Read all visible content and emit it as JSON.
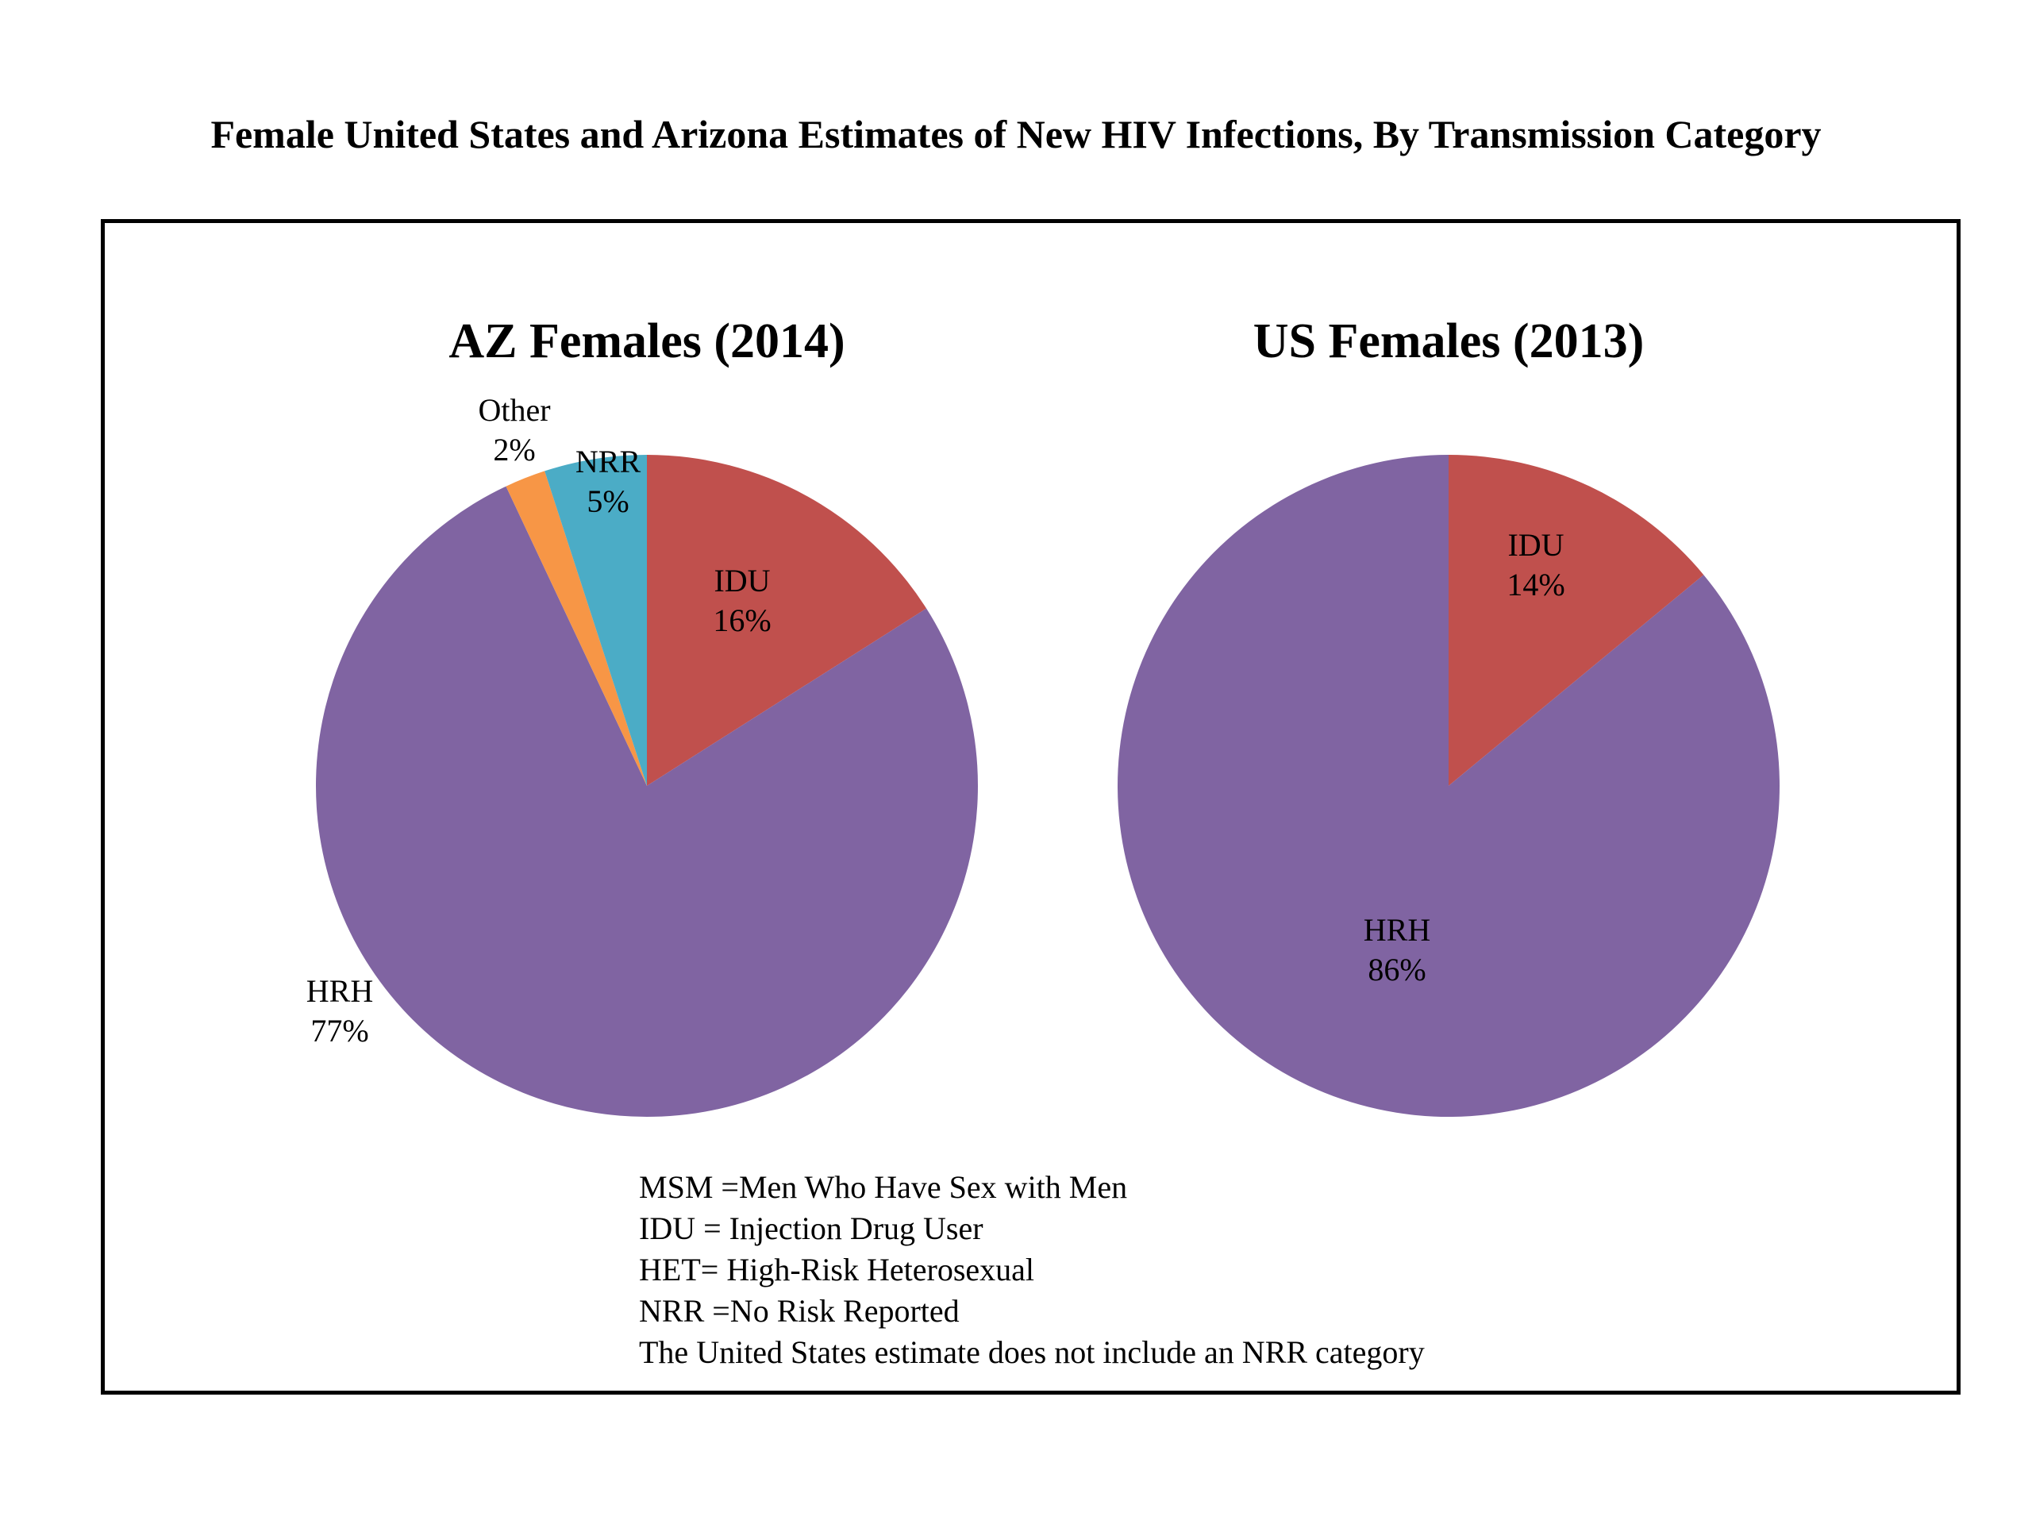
{
  "title": "Female United States and Arizona Estimates of New HIV Infections, By Transmission Category",
  "chart_data": [
    {
      "type": "pie",
      "title": "AZ Females (2014)",
      "start_angle_deg": 0,
      "direction": "clockwise",
      "slices": [
        {
          "label": "IDU",
          "value": 16,
          "display": "16%",
          "color": "#C0504D"
        },
        {
          "label": "HRH",
          "value": 77,
          "display": "77%",
          "color": "#8064A2"
        },
        {
          "label": "Other",
          "value": 2,
          "display": "2%",
          "color": "#F79646"
        },
        {
          "label": "NRR",
          "value": 5,
          "display": "5%",
          "color": "#4BACC6"
        }
      ]
    },
    {
      "type": "pie",
      "title": "US Females (2013)",
      "start_angle_deg": 0,
      "direction": "clockwise",
      "slices": [
        {
          "label": "IDU",
          "value": 14,
          "display": "14%",
          "color": "#C0504D"
        },
        {
          "label": "HRH",
          "value": 86,
          "display": "86%",
          "color": "#8064A2"
        }
      ]
    }
  ],
  "notes": [
    "MSM =Men Who Have Sex with Men",
    "IDU = Injection Drug User",
    "HET= High-Risk Heterosexual",
    "NRR =No Risk Reported",
    "The United States estimate does not include an NRR category"
  ]
}
